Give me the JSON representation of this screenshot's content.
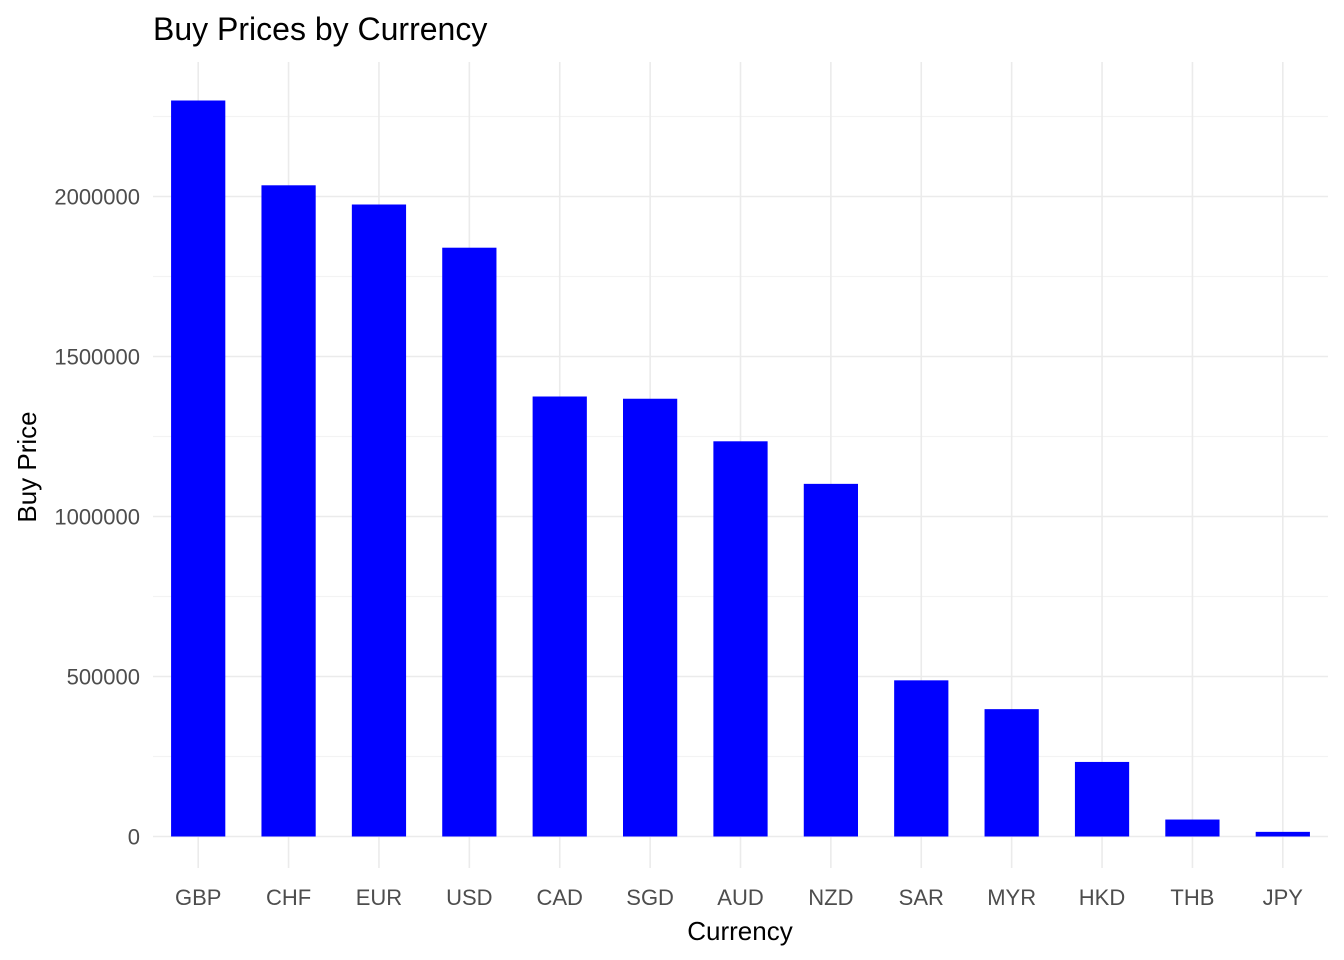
{
  "chart_data": {
    "type": "bar",
    "title": "Buy Prices by Currency",
    "xlabel": "Currency",
    "ylabel": "Buy Price",
    "categories": [
      "GBP",
      "CHF",
      "EUR",
      "USD",
      "CAD",
      "SGD",
      "AUD",
      "NZD",
      "SAR",
      "MYR",
      "HKD",
      "THB",
      "JPY"
    ],
    "values": [
      2300000,
      2035000,
      1975000,
      1840000,
      1375000,
      1368000,
      1235000,
      1102000,
      488000,
      398000,
      233000,
      53000,
      14500
    ],
    "ylim": [
      0,
      2300000
    ],
    "yticks": [
      0,
      500000,
      1000000,
      1500000,
      2000000
    ],
    "ytick_labels": [
      "0",
      "500000",
      "1000000",
      "1500000",
      "2000000"
    ],
    "bar_color": "#0000ff",
    "grid": true,
    "legend": "none"
  }
}
